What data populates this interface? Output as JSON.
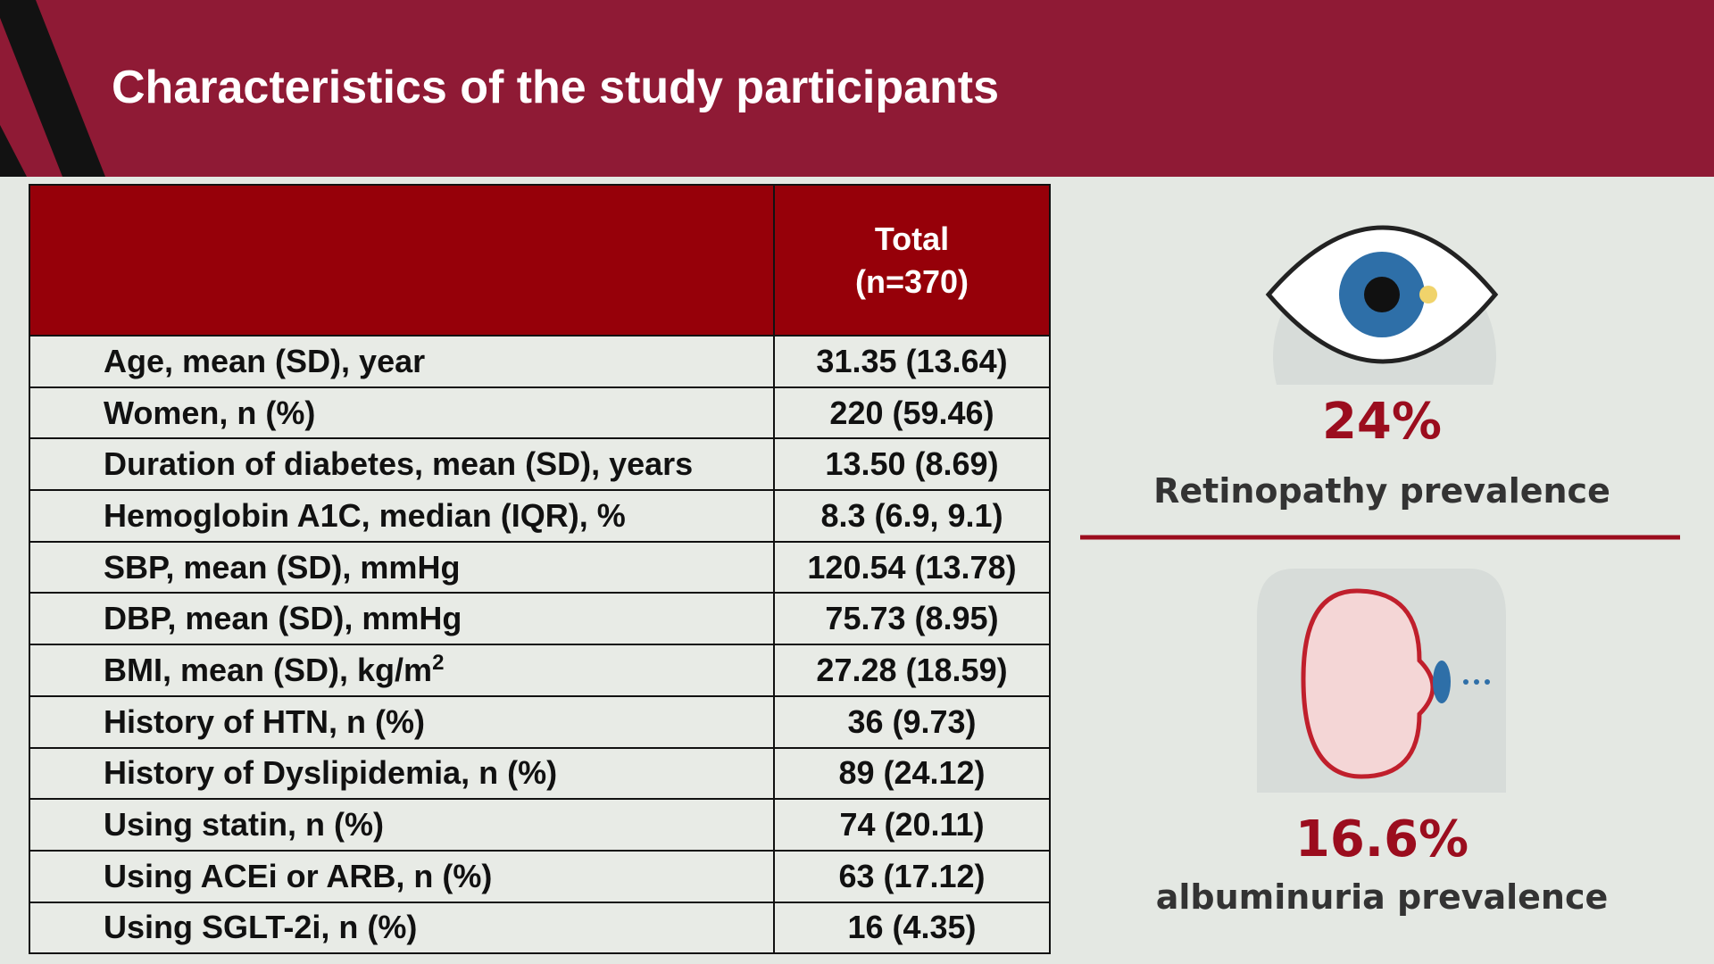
{
  "header": {
    "title": "Characteristics of the study participants"
  },
  "table": {
    "column_header": [
      "Total",
      "(n=370)"
    ],
    "rows": [
      {
        "label": "Age, mean (SD), year",
        "value": "31.35 (13.64)"
      },
      {
        "label": "Women, n (%)",
        "value": "220 (59.46)"
      },
      {
        "label": "Duration of diabetes, mean (SD), years",
        "value": "13.50 (8.69)"
      },
      {
        "label": "Hemoglobin A1C, median (IQR), %",
        "value": "8.3 (6.9, 9.1)"
      },
      {
        "label": "SBP, mean (SD), mmHg",
        "value": "120.54 (13.78)"
      },
      {
        "label": "DBP, mean (SD), mmHg",
        "value": "75.73 (8.95)"
      },
      {
        "label": "BMI, mean (SD), kg/m",
        "sup": "2",
        "value": "27.28 (18.59)"
      },
      {
        "label": "History of HTN, n (%)",
        "value": "36 (9.73)"
      },
      {
        "label": "History of Dyslipidemia, n (%)",
        "value": "89 (24.12)"
      },
      {
        "label": "Using statin, n (%)",
        "value": "74 (20.11)"
      },
      {
        "label": "Using ACEi or ARB, n (%)",
        "value": "63 (17.12)"
      },
      {
        "label": "Using SGLT-2i, n (%)",
        "value": "16 (4.35)"
      }
    ]
  },
  "stats": [
    {
      "value": "24%",
      "label": "Retinopathy prevalence"
    },
    {
      "value": "16.6%",
      "label": "albuminuria prevalence"
    }
  ]
}
